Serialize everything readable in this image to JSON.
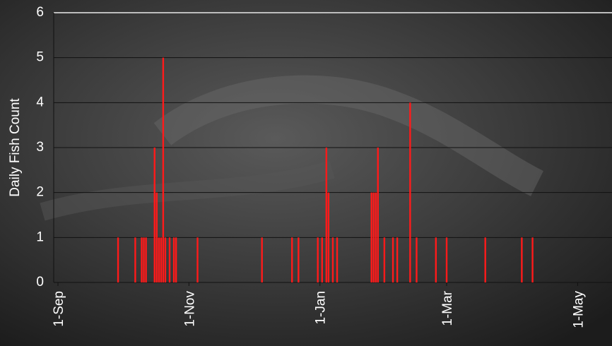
{
  "chart_data": {
    "type": "bar",
    "y_label": "Daily Fish Count",
    "color": "#ff1a1a",
    "grid": true,
    "ylim": [
      0,
      6
    ],
    "yticks": [
      0,
      1,
      2,
      3,
      4,
      5,
      6
    ],
    "xlim": [
      "1-Sep",
      "17-May"
    ],
    "xticks": [
      "1-Sep",
      "1-Nov",
      "1-Jan",
      "1-Mar",
      "1-May"
    ],
    "x": [
      "29-Sep",
      "7-Oct",
      "10-Oct",
      "11-Oct",
      "12-Oct",
      "16-Oct",
      "17-Oct",
      "18-Oct",
      "19-Oct",
      "20-Oct",
      "21-Oct",
      "23-Oct",
      "25-Oct",
      "26-Oct",
      "5-Nov",
      "5-Dec",
      "19-Dec",
      "22-Dec",
      "31-Dec",
      "2-Jan",
      "4-Jan",
      "5-Jan",
      "7-Jan",
      "9-Jan",
      "25-Jan",
      "26-Jan",
      "27-Jan",
      "28-Jan",
      "31-Jan",
      "4-Feb",
      "6-Feb",
      "12-Feb",
      "15-Feb",
      "24-Feb",
      "1-Mar",
      "19-Mar",
      "5-Apr",
      "10-Apr"
    ],
    "values": [
      1,
      1,
      1,
      1,
      1,
      3,
      2,
      1,
      1,
      5,
      1,
      1,
      1,
      1,
      1,
      1,
      1,
      1,
      1,
      1,
      3,
      2,
      1,
      1,
      2,
      2,
      2,
      3,
      1,
      1,
      1,
      4,
      1,
      1,
      1,
      1,
      1,
      1
    ]
  }
}
